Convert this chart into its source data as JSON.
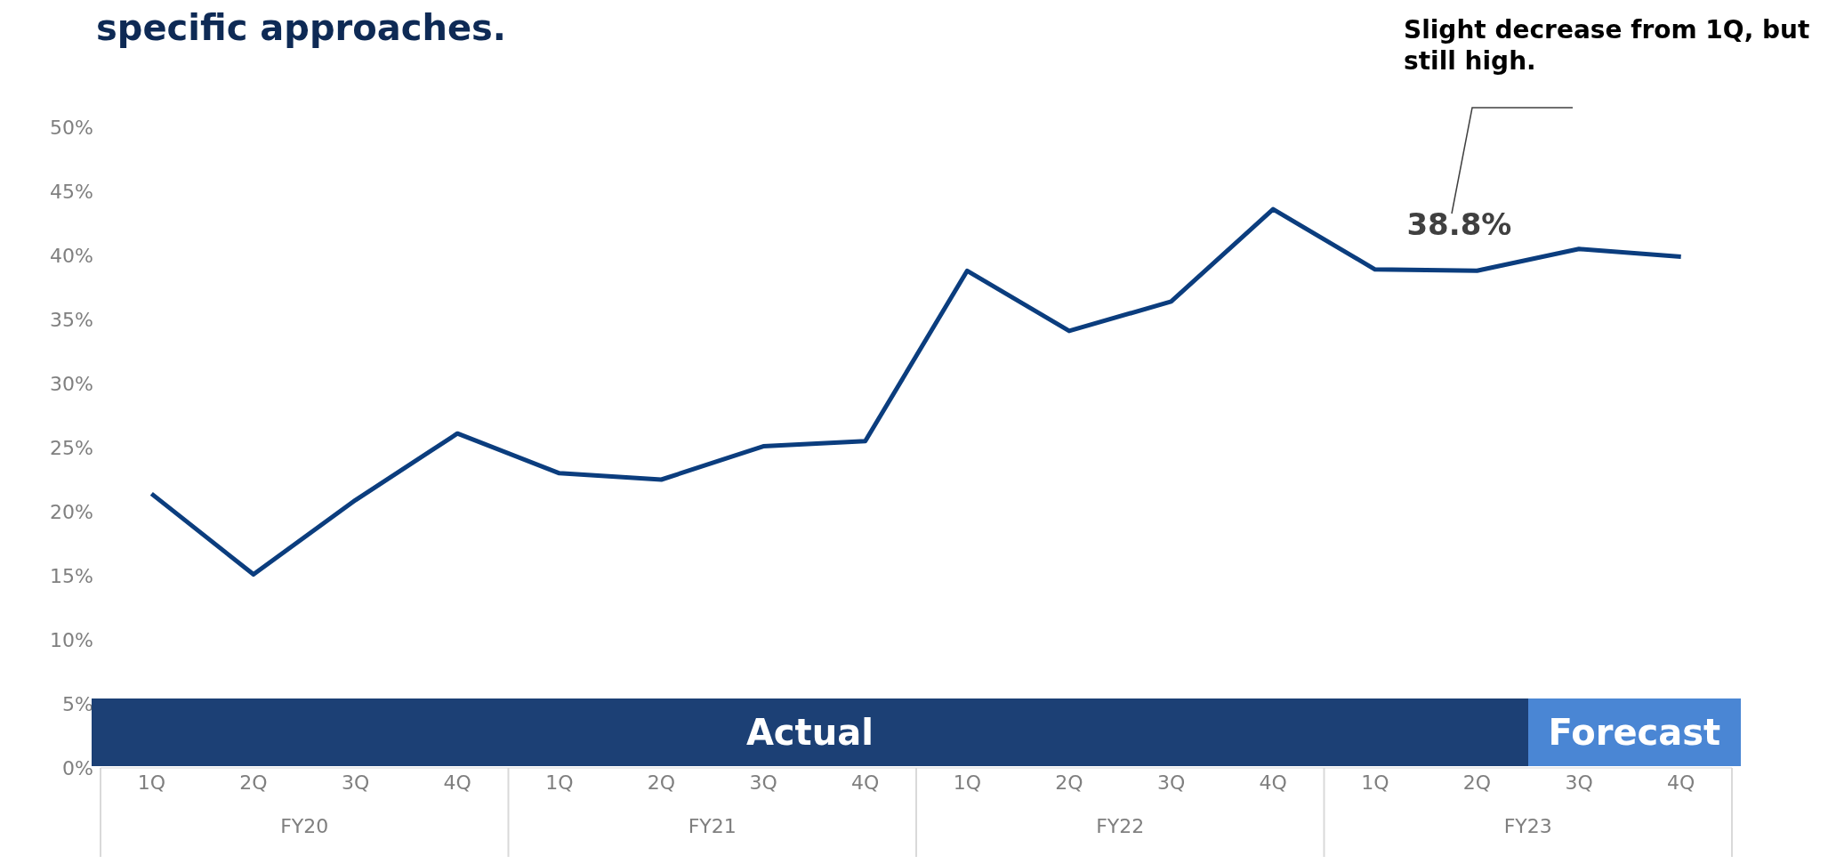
{
  "chart_data": {
    "type": "line",
    "title": "specific approaches.",
    "categories": [
      "1Q",
      "2Q",
      "3Q",
      "4Q",
      "1Q",
      "2Q",
      "3Q",
      "4Q",
      "1Q",
      "2Q",
      "3Q",
      "4Q",
      "1Q",
      "2Q",
      "3Q",
      "4Q"
    ],
    "series": [
      {
        "color": "#0b3d7e",
        "values": [
          21.4,
          15.1,
          20.9,
          26.1,
          23.0,
          22.5,
          25.1,
          25.5,
          38.8,
          34.1,
          36.4,
          43.6,
          38.9,
          38.8,
          40.5,
          39.9
        ],
        "value_labels": [
          null,
          null,
          null,
          null,
          null,
          null,
          null,
          null,
          null,
          null,
          null,
          null,
          null,
          "38.8%",
          null,
          null
        ]
      }
    ],
    "ylim": [
      0,
      50
    ],
    "yticks": [
      {
        "value": 0,
        "label": "0%"
      },
      {
        "value": 5,
        "label": "5%"
      },
      {
        "value": 10,
        "label": "10%"
      },
      {
        "value": 15,
        "label": "15%"
      },
      {
        "value": 20,
        "label": "20%"
      },
      {
        "value": 25,
        "label": "25%"
      },
      {
        "value": 30,
        "label": "30%"
      },
      {
        "value": 35,
        "label": "35%"
      },
      {
        "value": 40,
        "label": "40%"
      },
      {
        "value": 45,
        "label": "45%"
      },
      {
        "value": 50,
        "label": "50%"
      }
    ],
    "annotations": [
      "Slight decrease from 1Q, but still high.",
      "Actual",
      "Forecast",
      "FY20",
      "FY21",
      "FY22",
      "FY23"
    ],
    "grid": false,
    "legend": false,
    "marker": "none",
    "line_style": "solid"
  }
}
